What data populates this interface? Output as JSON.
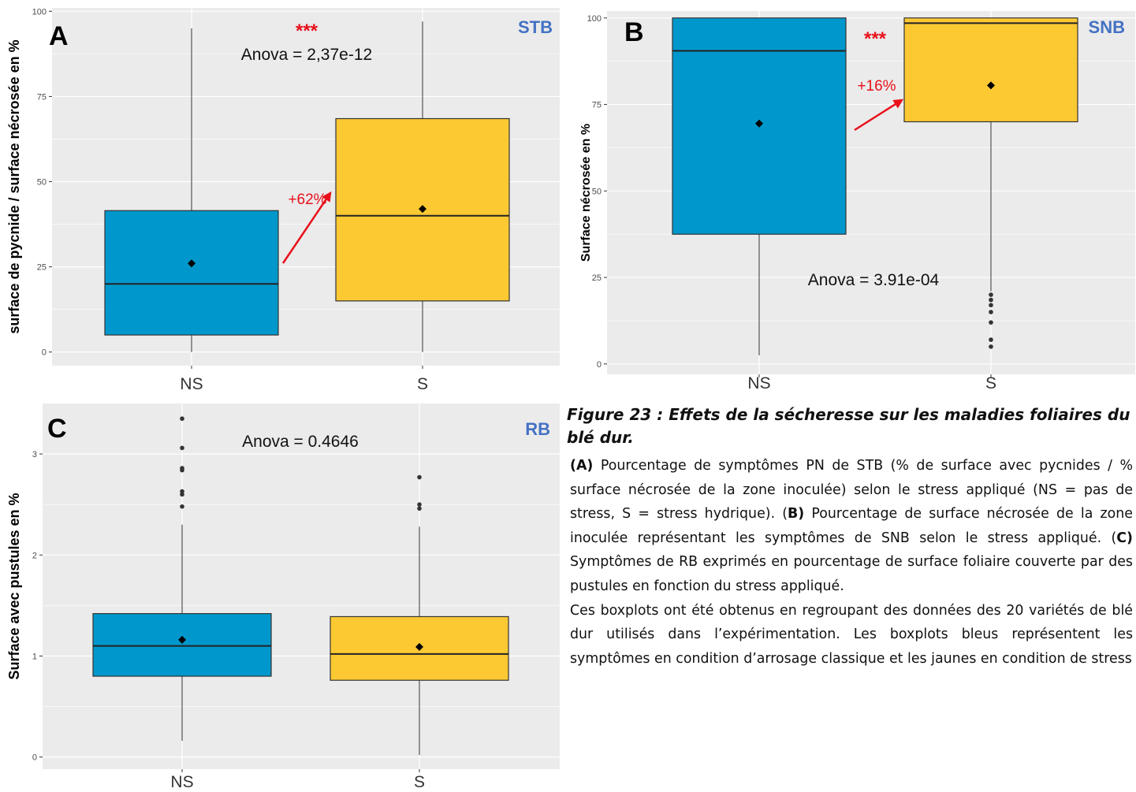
{
  "colors": {
    "ns_fill": "#0098cc",
    "s_fill": "#fdc933",
    "panel_bg": "#ebebeb",
    "grid": "#ffffff",
    "annot_red": "#e8101a",
    "tag_blue": "#4472c4"
  },
  "chart_data": [
    {
      "type": "boxplot",
      "panel_letter": "A",
      "disease_tag": "STB",
      "ylabel": "surface de pycnide / surface nécrosée en %",
      "ylim": [
        -4,
        101
      ],
      "yticks": [
        0,
        25,
        50,
        75,
        100
      ],
      "categories": [
        "NS",
        "S"
      ],
      "boxes": [
        {
          "name": "NS",
          "min": 0,
          "q1": 5,
          "median": 20,
          "q3": 41.5,
          "max": 95,
          "mean": 26,
          "outliers": []
        },
        {
          "name": "S",
          "min": 0,
          "q1": 15,
          "median": 40,
          "q3": 68.5,
          "max": 97,
          "mean": 42,
          "outliers": []
        }
      ],
      "annotations": {
        "anova": "Anova = 2,37e-12",
        "significance": "***",
        "change": "+62%"
      },
      "grid": true
    },
    {
      "type": "boxplot",
      "panel_letter": "B",
      "disease_tag": "SNB",
      "ylabel": "Surface nécrosée en %",
      "ylim": [
        -3,
        102
      ],
      "yticks": [
        0,
        25,
        50,
        75,
        100
      ],
      "categories": [
        "NS",
        "S"
      ],
      "boxes": [
        {
          "name": "NS",
          "min": 2.5,
          "q1": 37.5,
          "median": 90.5,
          "q3": 100,
          "max": 100,
          "mean": 69.5,
          "outliers": []
        },
        {
          "name": "S",
          "min": 21,
          "q1": 70,
          "median": 98.5,
          "q3": 100,
          "max": 100,
          "mean": 80.5,
          "outliers": [
            20,
            18.5,
            17,
            15,
            12,
            7,
            5
          ]
        }
      ],
      "annotations": {
        "anova": "Anova = 3.91e-04",
        "significance": "***",
        "change": "+16%"
      },
      "grid": true
    },
    {
      "type": "boxplot",
      "panel_letter": "C",
      "disease_tag": "RB",
      "ylabel": "Surface avec pustules en %",
      "ylim": [
        -0.12,
        3.5
      ],
      "yticks": [
        0,
        1,
        2,
        3
      ],
      "categories": [
        "NS",
        "S"
      ],
      "boxes": [
        {
          "name": "NS",
          "min": 0.16,
          "q1": 0.8,
          "median": 1.1,
          "q3": 1.42,
          "max": 2.3,
          "mean": 1.16,
          "outliers": [
            2.48,
            2.6,
            2.63,
            2.84,
            2.86,
            3.06,
            3.35
          ]
        },
        {
          "name": "S",
          "min": 0.02,
          "q1": 0.76,
          "median": 1.02,
          "q3": 1.39,
          "max": 2.28,
          "mean": 1.09,
          "outliers": [
            2.46,
            2.5,
            2.77
          ]
        }
      ],
      "annotations": {
        "anova": "Anova = 0.4646",
        "significance": "",
        "change": ""
      },
      "grid": true
    }
  ],
  "caption": {
    "title": "Figure 23 : Effets de la sécheresse sur les maladies foliaires du blé dur.",
    "p1_a_label": "(A)",
    "p1_a_text": " Pourcentage de symptômes PN de STB (% de surface avec pycnides / % surface nécrosée de la zone inoculée) selon le stress appliqué (NS = pas de stress, S = stress hydrique). (",
    "p1_b_label": "B)",
    "p1_b_text": " Pourcentage de surface nécrosée de la zone inoculée représentant les symptômes de SNB selon le stress appliqué. (",
    "p1_c_label": "C)",
    "p1_c_text": " Symptômes de RB exprimés en pourcentage de surface foliaire couverte par des pustules en fonction du stress appliqué.",
    "p2": "Ces boxplots ont été obtenus en regroupant des données des 20 variétés de blé dur utilisés dans l’expérimentation. Les boxplots bleus représentent les symptômes en condition d’arrosage classique et les jaunes en condition de stress"
  }
}
